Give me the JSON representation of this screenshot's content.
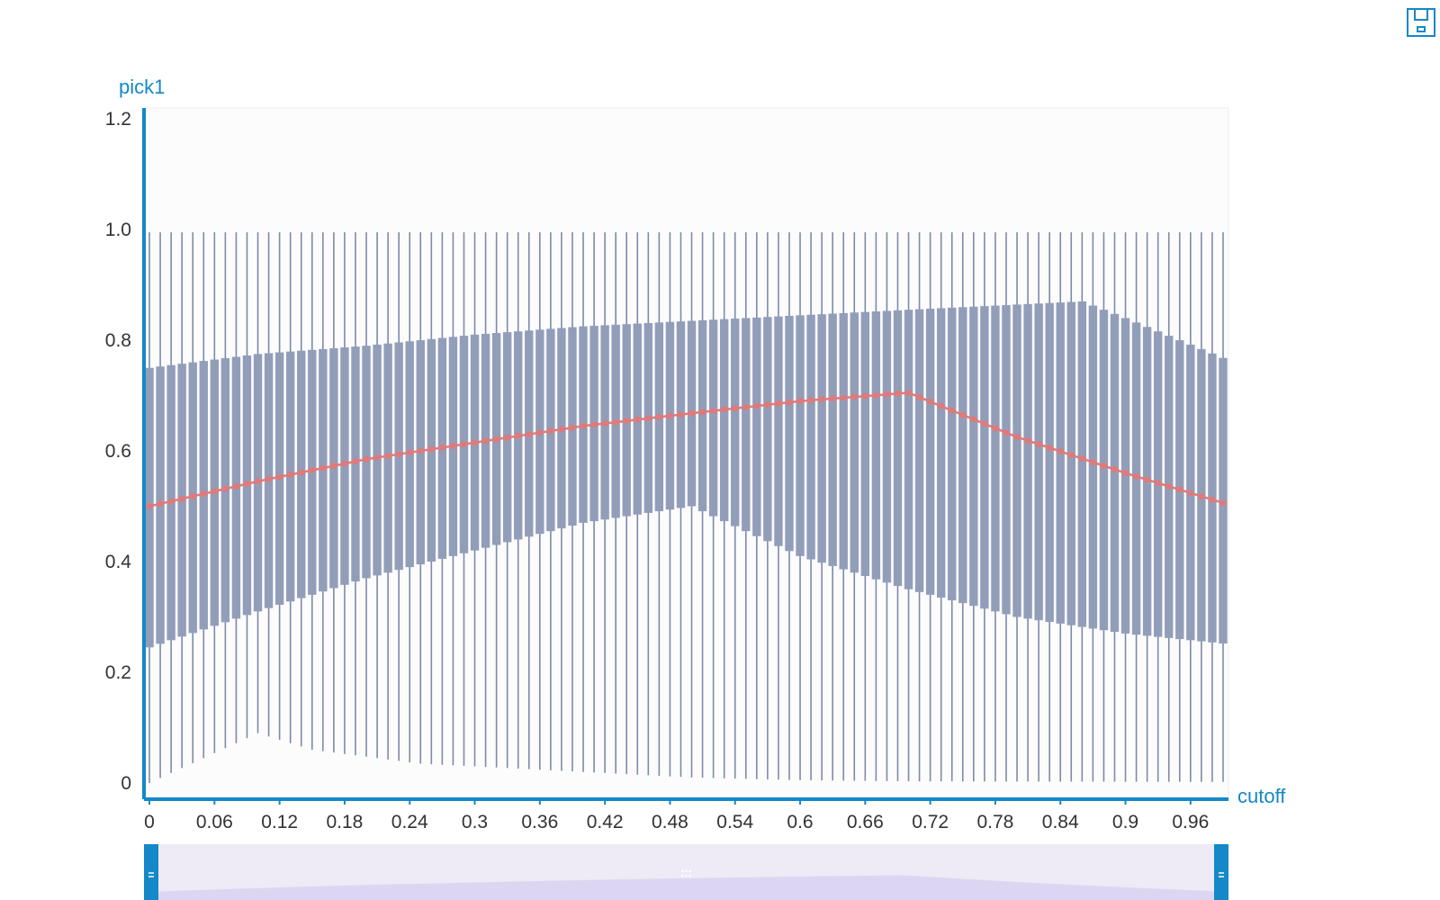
{
  "toolbox": {
    "save_icon": "save-icon",
    "save_title": ""
  },
  "colors": {
    "axis": "#1488c8",
    "box": "#929eb9",
    "whisker": "#7e8aa8",
    "mean": "#e07a7a",
    "grid": "#e8e8e8",
    "zoom_bg": "#eeeaf6",
    "zoom_fill": "#ddd6f3",
    "handle": "#1488c8"
  },
  "chart_data": {
    "type": "boxplot",
    "title": "",
    "xlabel": "cutoff",
    "ylabel": "pick1",
    "xlim": [
      0,
      1
    ],
    "ylim": [
      0,
      1.2
    ],
    "x_ticks": [
      "0",
      "0.06",
      "0.12",
      "0.18",
      "0.24",
      "0.3",
      "0.36",
      "0.42",
      "0.48",
      "0.54",
      "0.6",
      "0.66",
      "0.72",
      "0.78",
      "0.84",
      "0.9",
      "0.96"
    ],
    "y_ticks": [
      "0",
      "0.2",
      "0.4",
      "0.6",
      "0.8",
      "1.0",
      "1.2"
    ],
    "grid": true,
    "legend": "none",
    "cutoff_start": 0,
    "cutoff_step": 0.01,
    "count": 100,
    "box_q3": {
      "knots_x": [
        0,
        0.1,
        0.2,
        0.3,
        0.4,
        0.5,
        0.6,
        0.7,
        0.86,
        0.9,
        1.0
      ],
      "knots_y": [
        0.75,
        0.775,
        0.79,
        0.81,
        0.825,
        0.835,
        0.845,
        0.855,
        0.87,
        0.84,
        0.76
      ]
    },
    "box_q1": {
      "knots_x": [
        0,
        0.1,
        0.2,
        0.3,
        0.4,
        0.5,
        0.6,
        0.7,
        0.8,
        0.9,
        1.0
      ],
      "knots_y": [
        0.245,
        0.31,
        0.37,
        0.42,
        0.47,
        0.5,
        0.41,
        0.35,
        0.3,
        0.27,
        0.25
      ]
    },
    "whisker_high": 0.995,
    "whisker_low": {
      "knots_x": [
        0,
        0.1,
        0.15,
        0.25,
        0.4,
        0.5,
        0.6,
        0.7,
        1.0
      ],
      "knots_y": [
        0.0,
        0.09,
        0.06,
        0.035,
        0.02,
        0.01,
        0.005,
        0.003,
        0.002
      ]
    },
    "mean": {
      "knots_x": [
        0,
        0.1,
        0.2,
        0.3,
        0.4,
        0.5,
        0.6,
        0.7,
        0.8,
        0.9,
        1.0
      ],
      "knots_y": [
        0.5,
        0.545,
        0.585,
        0.615,
        0.645,
        0.668,
        0.69,
        0.705,
        0.625,
        0.56,
        0.5
      ]
    },
    "zoom_range": [
      0,
      1
    ]
  }
}
